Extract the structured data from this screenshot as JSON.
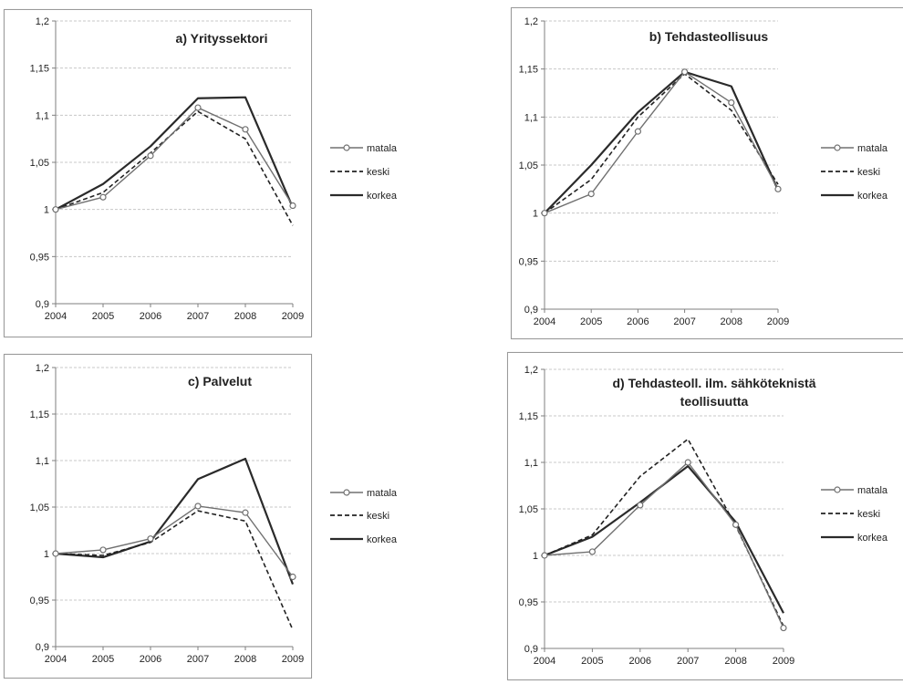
{
  "chart_data": [
    {
      "type": "line",
      "title": "a) Yrityssektori",
      "x": [
        "2004",
        "2005",
        "2006",
        "2007",
        "2008",
        "2009"
      ],
      "ylim": [
        0.9,
        1.2
      ],
      "yticks": [
        "0,9",
        "0,95",
        "1",
        "1,05",
        "1,1",
        "1,15",
        "1,2"
      ],
      "grid": true,
      "legend": "right",
      "series": [
        {
          "name": "matala",
          "values": [
            1.0,
            1.013,
            1.057,
            1.108,
            1.085,
            1.004
          ]
        },
        {
          "name": "keski",
          "values": [
            1.0,
            1.018,
            1.06,
            1.104,
            1.075,
            0.983
          ]
        },
        {
          "name": "korkea",
          "values": [
            1.0,
            1.027,
            1.067,
            1.118,
            1.119,
            1.002
          ]
        }
      ]
    },
    {
      "type": "line",
      "title": "b) Tehdasteollisuus",
      "x": [
        "2004",
        "2005",
        "2006",
        "2007",
        "2008",
        "2009"
      ],
      "ylim": [
        0.9,
        1.2
      ],
      "yticks": [
        "0,9",
        "0,95",
        "1",
        "1,05",
        "1,1",
        "1,15",
        "1,2"
      ],
      "grid": true,
      "legend": "right",
      "series": [
        {
          "name": "matala",
          "values": [
            1.0,
            1.02,
            1.085,
            1.147,
            1.115,
            1.025
          ]
        },
        {
          "name": "keski",
          "values": [
            1.0,
            1.035,
            1.1,
            1.145,
            1.107,
            1.03
          ]
        },
        {
          "name": "korkea",
          "values": [
            1.0,
            1.05,
            1.105,
            1.147,
            1.132,
            1.024
          ]
        }
      ]
    },
    {
      "type": "line",
      "title": "c) Palvelut",
      "x": [
        "2004",
        "2005",
        "2006",
        "2007",
        "2008",
        "2009"
      ],
      "ylim": [
        0.9,
        1.2
      ],
      "yticks": [
        "0,9",
        "0,95",
        "1",
        "1,05",
        "1,1",
        "1,15",
        "1,2"
      ],
      "grid": true,
      "legend": "right",
      "series": [
        {
          "name": "matala",
          "values": [
            1.0,
            1.004,
            1.016,
            1.051,
            1.044,
            0.975
          ]
        },
        {
          "name": "keski",
          "values": [
            1.0,
            0.998,
            1.012,
            1.046,
            1.035,
            0.918
          ]
        },
        {
          "name": "korkea",
          "values": [
            1.0,
            0.996,
            1.013,
            1.08,
            1.102,
            0.967
          ]
        }
      ]
    },
    {
      "type": "line",
      "title": "d) Tehdasteoll. ilm. sähköteknistä teollisuutta",
      "title_lines": [
        "d) Tehdasteoll. ilm. sähköteknistä",
        "teollisuutta"
      ],
      "x": [
        "2004",
        "2005",
        "2006",
        "2007",
        "2008",
        "2009"
      ],
      "ylim": [
        0.9,
        1.2
      ],
      "yticks": [
        "0,9",
        "0,95",
        "1",
        "1,05",
        "1,1",
        "1,15",
        "1,2"
      ],
      "grid": true,
      "legend": "right",
      "series": [
        {
          "name": "matala",
          "values": [
            1.0,
            1.004,
            1.054,
            1.1,
            1.033,
            0.922
          ]
        },
        {
          "name": "keski",
          "values": [
            1.0,
            1.022,
            1.085,
            1.125,
            1.032,
            0.924
          ]
        },
        {
          "name": "korkea",
          "values": [
            1.0,
            1.02,
            1.057,
            1.096,
            1.036,
            0.938
          ]
        }
      ]
    }
  ],
  "styles": {
    "grid_color": "#c8c8c8",
    "axis_color": "#7f7f7f",
    "text_color": "#222222",
    "matala_color": "#707070",
    "keski_color": "#222222",
    "korkea_color": "#2a2a2a"
  }
}
